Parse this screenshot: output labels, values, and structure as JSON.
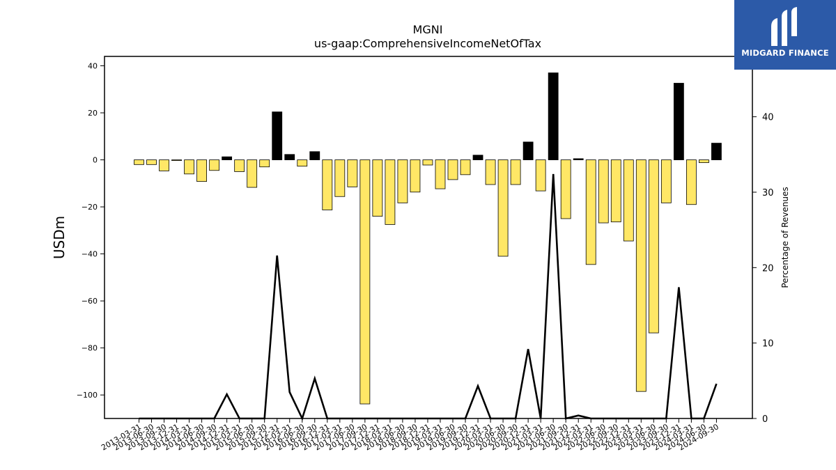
{
  "chart_data": {
    "type": "bar",
    "title": "MGNI",
    "subtitle": "us-gaap:ComprehensiveIncomeNetOfTax",
    "ylabel": "USDm",
    "ylabel_right": "Percentage of Revenues",
    "ylim": [
      -110,
      44
    ],
    "ylim_right": [
      0,
      48
    ],
    "yticks": [
      40,
      20,
      0,
      -20,
      -40,
      -60,
      -80,
      -100
    ],
    "yticks_right": [
      0,
      10,
      20,
      30,
      40
    ],
    "grid": false,
    "categories": [
      "2013-03-31",
      "2013-06-30",
      "2013-09-30",
      "2013-12-31",
      "2014-03-31",
      "2014-06-30",
      "2014-09-30",
      "2014-12-31",
      "2015-03-31",
      "2015-06-30",
      "2015-09-30",
      "2015-12-31",
      "2016-03-31",
      "2016-06-30",
      "2016-09-30",
      "2016-12-31",
      "2017-03-31",
      "2017-06-30",
      "2017-09-30",
      "2017-12-31",
      "2018-03-31",
      "2018-06-30",
      "2018-09-30",
      "2018-12-31",
      "2019-03-31",
      "2019-06-30",
      "2019-09-30",
      "2019-12-31",
      "2020-03-31",
      "2020-06-30",
      "2020-09-30",
      "2020-12-31",
      "2021-03-31",
      "2021-06-30",
      "2021-09-30",
      "2021-12-31",
      "2022-03-31",
      "2022-06-30",
      "2022-09-30",
      "2022-12-31",
      "2023-03-31",
      "2023-06-30",
      "2023-09-30",
      "2023-12-31",
      "2024-03-31",
      "2024-06-30",
      "2024-09-30"
    ],
    "series": [
      {
        "values": [
          -2,
          -2,
          -4.7,
          -0.3,
          -6,
          -9.2,
          -4.5,
          1.3,
          -5,
          -11.7,
          -3,
          20.4,
          2.3,
          -2.7,
          3.5,
          -21.3,
          -15.6,
          -11.5,
          -103.8,
          -24,
          -27.5,
          -18.3,
          -13.7,
          -2.2,
          -12.3,
          -8.4,
          -6.3,
          2,
          -10.5,
          -41,
          -10.5,
          7.6,
          -13.2,
          37,
          -25,
          0.5,
          -44.5,
          -26.8,
          -26.4,
          -34.5,
          -98.5,
          -73.6,
          -18.3,
          32.6,
          -19,
          -1.2,
          7.1
        ]
      },
      {
        "axis": "right",
        "type": "line",
        "values": [
          0,
          0,
          0,
          0,
          0,
          0,
          0,
          3.2,
          0,
          0,
          0,
          21.6,
          3.5,
          0,
          5.3,
          0,
          0,
          0,
          0,
          0,
          0,
          0,
          0,
          0,
          0,
          0,
          0,
          4.3,
          0,
          0,
          0,
          9.2,
          0,
          32.4,
          0,
          0.4,
          0,
          0,
          0,
          0,
          0,
          0,
          0,
          17.4,
          0,
          0,
          4.6
        ]
      }
    ]
  },
  "logo": {
    "text": "MIDGARD FINANCE"
  },
  "colors": {
    "positive_bar": "#000000",
    "negative_bar": "#ffe766",
    "line": "#000000",
    "logo_bg": "#2c5aa8"
  }
}
